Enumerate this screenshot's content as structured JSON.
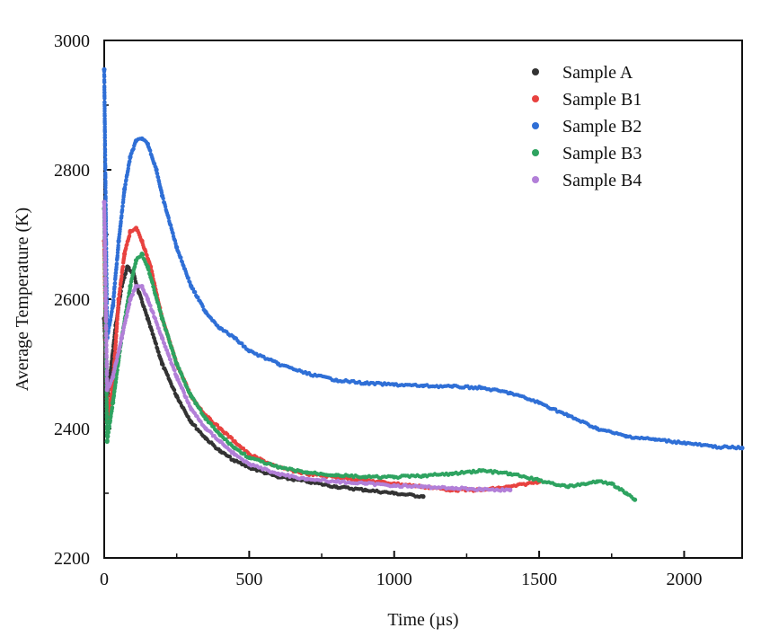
{
  "chart_data": {
    "type": "scatter",
    "xlabel": "Time (µs)",
    "ylabel": "Average Temperature (K)",
    "xlim": [
      0,
      2200
    ],
    "ylim": [
      2200,
      3000
    ],
    "xticks": [
      0,
      500,
      1000,
      1500,
      2000
    ],
    "yticks": [
      2200,
      2400,
      2600,
      2800,
      3000
    ],
    "x_tick_labels": [
      "0",
      "500",
      "1000",
      "1500",
      "2000"
    ],
    "y_tick_labels": [
      "2200",
      "2400",
      "2600",
      "2800",
      "3000"
    ],
    "grid": false,
    "legend_position": "top-right",
    "series": [
      {
        "name": "Sample A",
        "color": "#333333",
        "points": [
          [
            0,
            2570
          ],
          [
            10,
            2450
          ],
          [
            20,
            2480
          ],
          [
            40,
            2560
          ],
          [
            60,
            2620
          ],
          [
            80,
            2650
          ],
          [
            100,
            2640
          ],
          [
            120,
            2610
          ],
          [
            150,
            2570
          ],
          [
            200,
            2500
          ],
          [
            250,
            2450
          ],
          [
            300,
            2410
          ],
          [
            350,
            2385
          ],
          [
            400,
            2365
          ],
          [
            450,
            2350
          ],
          [
            500,
            2340
          ],
          [
            600,
            2325
          ],
          [
            700,
            2318
          ],
          [
            800,
            2310
          ],
          [
            900,
            2305
          ],
          [
            1000,
            2300
          ],
          [
            1100,
            2295
          ]
        ]
      },
      {
        "name": "Sample B1",
        "color": "#e8423f",
        "points": [
          [
            0,
            2690
          ],
          [
            10,
            2410
          ],
          [
            30,
            2470
          ],
          [
            50,
            2600
          ],
          [
            70,
            2670
          ],
          [
            90,
            2705
          ],
          [
            110,
            2710
          ],
          [
            130,
            2690
          ],
          [
            160,
            2650
          ],
          [
            200,
            2570
          ],
          [
            250,
            2500
          ],
          [
            300,
            2450
          ],
          [
            350,
            2420
          ],
          [
            400,
            2400
          ],
          [
            450,
            2380
          ],
          [
            500,
            2360
          ],
          [
            600,
            2340
          ],
          [
            700,
            2330
          ],
          [
            800,
            2325
          ],
          [
            900,
            2320
          ],
          [
            1000,
            2315
          ],
          [
            1100,
            2310
          ],
          [
            1200,
            2305
          ],
          [
            1300,
            2305
          ],
          [
            1400,
            2310
          ],
          [
            1500,
            2318
          ]
        ]
      },
      {
        "name": "Sample B2",
        "color": "#2f6fd6",
        "points": [
          [
            0,
            2955
          ],
          [
            10,
            2540
          ],
          [
            30,
            2590
          ],
          [
            50,
            2690
          ],
          [
            70,
            2770
          ],
          [
            90,
            2820
          ],
          [
            110,
            2845
          ],
          [
            130,
            2848
          ],
          [
            150,
            2840
          ],
          [
            180,
            2800
          ],
          [
            200,
            2760
          ],
          [
            250,
            2680
          ],
          [
            300,
            2620
          ],
          [
            350,
            2580
          ],
          [
            400,
            2555
          ],
          [
            450,
            2540
          ],
          [
            500,
            2520
          ],
          [
            600,
            2500
          ],
          [
            700,
            2485
          ],
          [
            800,
            2475
          ],
          [
            900,
            2470
          ],
          [
            1000,
            2468
          ],
          [
            1100,
            2466
          ],
          [
            1200,
            2465
          ],
          [
            1300,
            2463
          ],
          [
            1400,
            2455
          ],
          [
            1500,
            2440
          ],
          [
            1600,
            2420
          ],
          [
            1700,
            2400
          ],
          [
            1800,
            2388
          ],
          [
            1900,
            2383
          ],
          [
            2000,
            2378
          ],
          [
            2100,
            2372
          ],
          [
            2200,
            2370
          ]
        ]
      },
      {
        "name": "Sample B3",
        "color": "#2ea360",
        "points": [
          [
            0,
            2740
          ],
          [
            10,
            2380
          ],
          [
            30,
            2440
          ],
          [
            60,
            2540
          ],
          [
            90,
            2620
          ],
          [
            110,
            2660
          ],
          [
            130,
            2670
          ],
          [
            150,
            2650
          ],
          [
            200,
            2570
          ],
          [
            250,
            2500
          ],
          [
            300,
            2450
          ],
          [
            350,
            2415
          ],
          [
            400,
            2390
          ],
          [
            450,
            2370
          ],
          [
            500,
            2355
          ],
          [
            600,
            2340
          ],
          [
            700,
            2332
          ],
          [
            800,
            2328
          ],
          [
            900,
            2325
          ],
          [
            1000,
            2325
          ],
          [
            1100,
            2327
          ],
          [
            1200,
            2330
          ],
          [
            1300,
            2335
          ],
          [
            1400,
            2330
          ],
          [
            1500,
            2320
          ],
          [
            1600,
            2310
          ],
          [
            1700,
            2318
          ],
          [
            1750,
            2315
          ],
          [
            1800,
            2300
          ],
          [
            1830,
            2290
          ]
        ]
      },
      {
        "name": "Sample B4",
        "color": "#b27fd8",
        "points": [
          [
            0,
            2750
          ],
          [
            10,
            2460
          ],
          [
            30,
            2480
          ],
          [
            60,
            2540
          ],
          [
            90,
            2600
          ],
          [
            110,
            2620
          ],
          [
            130,
            2620
          ],
          [
            150,
            2600
          ],
          [
            200,
            2540
          ],
          [
            250,
            2480
          ],
          [
            300,
            2430
          ],
          [
            350,
            2400
          ],
          [
            400,
            2380
          ],
          [
            450,
            2360
          ],
          [
            500,
            2345
          ],
          [
            600,
            2330
          ],
          [
            700,
            2322
          ],
          [
            800,
            2318
          ],
          [
            900,
            2315
          ],
          [
            1000,
            2312
          ],
          [
            1100,
            2310
          ],
          [
            1200,
            2308
          ],
          [
            1300,
            2306
          ],
          [
            1400,
            2305
          ]
        ]
      }
    ]
  }
}
